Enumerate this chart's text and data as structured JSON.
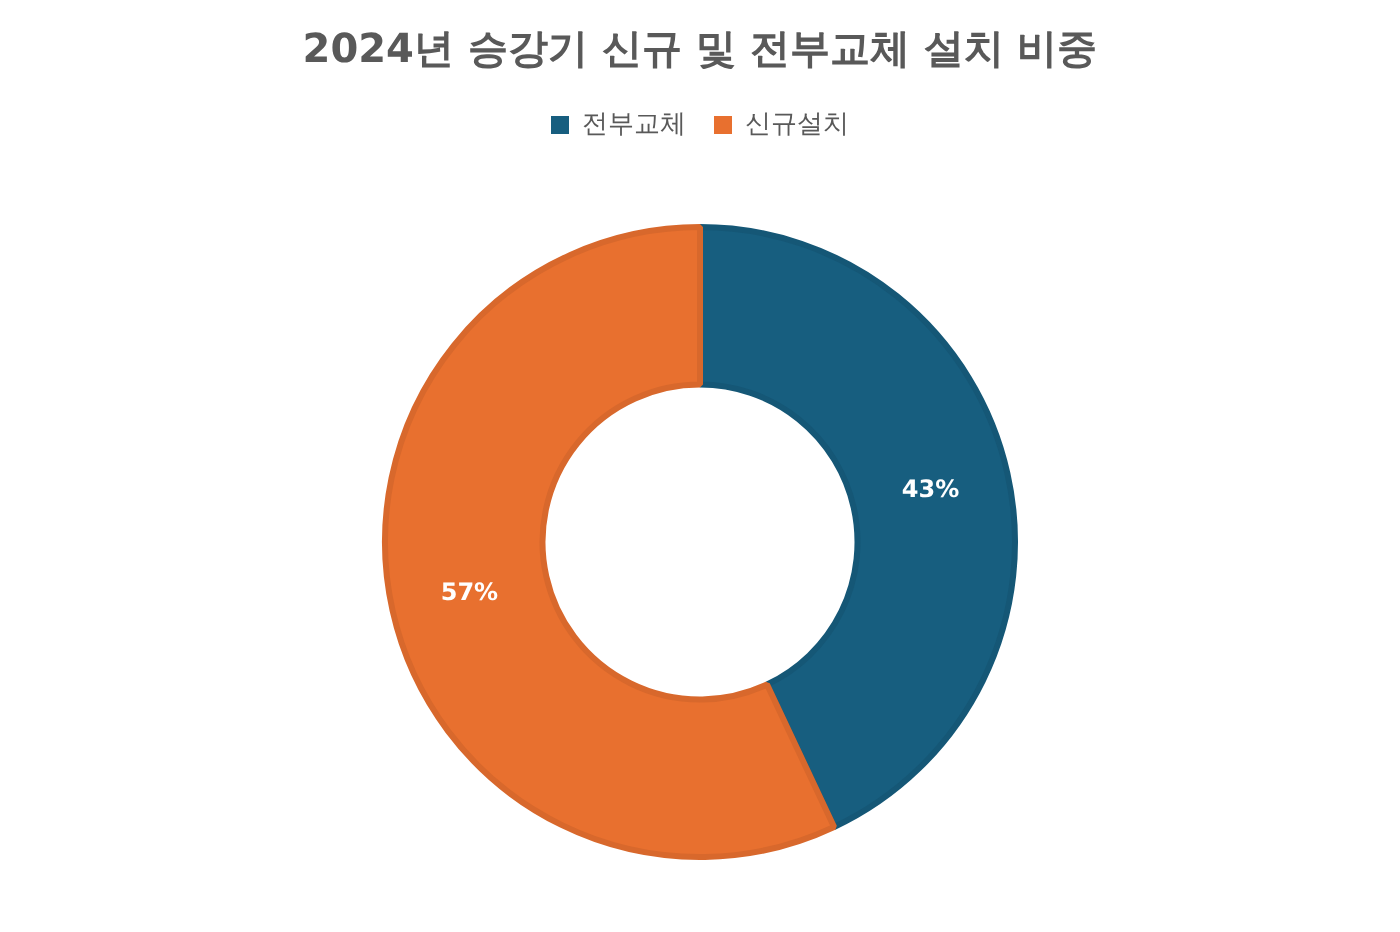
{
  "chart_data": {
    "type": "donut",
    "title": "2024년 승강기 신규 및 전부교체 설치 비중",
    "categories": [
      "전부교체",
      "신규설치"
    ],
    "values": [
      43,
      57
    ],
    "colors": [
      "#175e7f",
      "#e8702f"
    ],
    "value_labels": [
      "43%",
      "57%"
    ],
    "legend": "top"
  }
}
